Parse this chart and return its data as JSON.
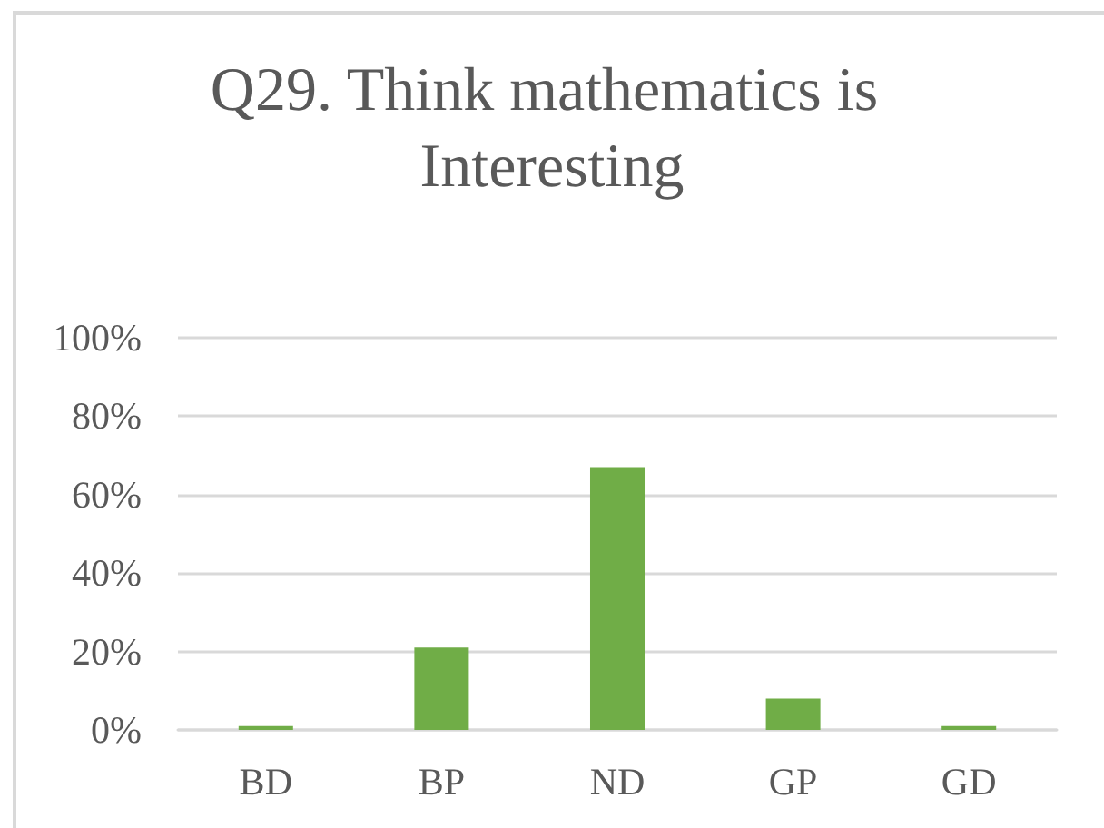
{
  "chart_data": {
    "type": "bar",
    "title": "Q29. Think mathematics is Interesting",
    "categories": [
      "BD",
      "BP",
      "ND",
      "GP",
      "GD"
    ],
    "values": [
      1,
      21,
      67,
      8,
      1
    ],
    "color": "#70ad47",
    "ylim": [
      0,
      100
    ],
    "yticks": [
      {
        "value": 0,
        "label": "0%"
      },
      {
        "value": 20,
        "label": "20%"
      },
      {
        "value": 40,
        "label": "40%"
      },
      {
        "value": 60,
        "label": "60%"
      },
      {
        "value": 80,
        "label": "80%"
      },
      {
        "value": 100,
        "label": "100%"
      }
    ],
    "grid": "y"
  }
}
